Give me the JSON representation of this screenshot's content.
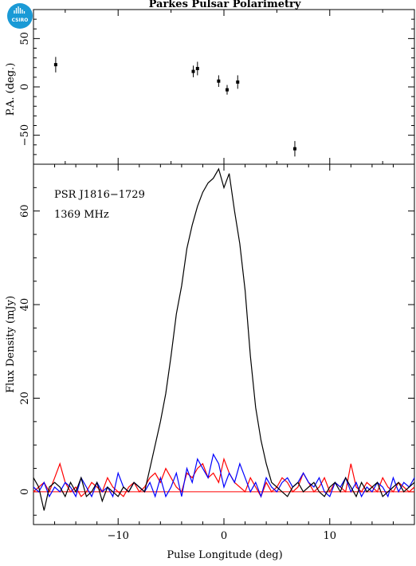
{
  "logo": {
    "text": "CSIRO",
    "color": "#1a9ad6"
  },
  "chart_data": [
    {
      "type": "scatter",
      "title": "Parkes Pulsar Polarimetry",
      "ylabel": "P.A. (deg.)",
      "xlim": [
        -18,
        18
      ],
      "ylim": [
        -80,
        80
      ],
      "y_ticks": [
        -50,
        0,
        50
      ],
      "y_tick_labels": [
        "−50",
        "0",
        "50"
      ],
      "grid": false,
      "points": [
        {
          "x": -15.9,
          "y": 23,
          "err": 8
        },
        {
          "x": -2.9,
          "y": 16,
          "err": 6
        },
        {
          "x": -2.5,
          "y": 19,
          "err": 7
        },
        {
          "x": -0.5,
          "y": 6,
          "err": 6
        },
        {
          "x": 0.3,
          "y": -3,
          "err": 5
        },
        {
          "x": 1.3,
          "y": 5,
          "err": 7
        },
        {
          "x": 6.7,
          "y": -64,
          "err": 8
        }
      ]
    },
    {
      "type": "line",
      "annotations": [
        "PSR J1816−1729",
        "1369 MHz"
      ],
      "xlabel": "Pulse Longitude (deg)",
      "ylabel": "Flux Density (mJy)",
      "xlim": [
        -18,
        18
      ],
      "ylim": [
        -7,
        70
      ],
      "x_ticks": [
        -10,
        0,
        10
      ],
      "x_tick_labels": [
        "−10",
        "0",
        "10"
      ],
      "y_ticks": [
        0,
        20,
        40,
        60
      ],
      "y_tick_labels": [
        "0",
        "20",
        "40",
        "60"
      ],
      "grid": false,
      "x": [
        -18.0,
        -17.5,
        -17.0,
        -16.5,
        -16.0,
        -15.5,
        -15.0,
        -14.5,
        -14.0,
        -13.5,
        -13.0,
        -12.5,
        -12.0,
        -11.5,
        -11.0,
        -10.5,
        -10.0,
        -9.5,
        -9.0,
        -8.5,
        -8.0,
        -7.5,
        -7.0,
        -6.5,
        -6.0,
        -5.5,
        -5.0,
        -4.5,
        -4.0,
        -3.5,
        -3.0,
        -2.5,
        -2.0,
        -1.5,
        -1.0,
        -0.5,
        0.0,
        0.5,
        1.0,
        1.5,
        2.0,
        2.5,
        3.0,
        3.5,
        4.0,
        4.5,
        5.0,
        5.5,
        6.0,
        6.5,
        7.0,
        7.5,
        8.0,
        8.5,
        9.0,
        9.5,
        10.0,
        10.5,
        11.0,
        11.5,
        12.0,
        12.5,
        13.0,
        13.5,
        14.0,
        14.5,
        15.0,
        15.5,
        16.0,
        16.5,
        17.0,
        17.5,
        18.0
      ],
      "series": [
        {
          "color": "#000000",
          "values": [
            3,
            1,
            -4,
            1,
            2,
            1,
            -1,
            2,
            0,
            3,
            -1,
            0,
            2,
            -2,
            1,
            0,
            -1,
            1,
            0,
            2,
            1,
            0,
            5,
            10,
            15,
            21,
            29,
            38,
            44,
            52,
            57,
            61,
            64,
            66,
            67,
            69,
            65,
            68,
            60,
            53,
            43,
            29,
            18,
            11,
            6,
            2,
            1,
            0,
            -1,
            1,
            2,
            0,
            1,
            2,
            0,
            -1,
            1,
            2,
            0,
            3,
            1,
            -1,
            2,
            0,
            1,
            2,
            -1,
            0,
            1,
            2,
            0,
            1,
            2
          ]
        },
        {
          "color": "#ff0000",
          "values": [
            0,
            1,
            2,
            0,
            3,
            6,
            2,
            0,
            1,
            -1,
            0,
            2,
            1,
            0,
            3,
            1,
            0,
            -1,
            1,
            2,
            0,
            1,
            3,
            4,
            2,
            5,
            3,
            1,
            0,
            4,
            3,
            5,
            6,
            3,
            4,
            2,
            7,
            4,
            2,
            1,
            0,
            3,
            1,
            -1,
            2,
            0,
            1,
            3,
            2,
            0,
            1,
            4,
            2,
            0,
            1,
            3,
            0,
            2,
            1,
            0,
            6,
            1,
            0,
            2,
            1,
            0,
            3,
            1,
            0,
            2,
            1,
            0,
            1
          ]
        },
        {
          "color": "#0000ff",
          "values": [
            1,
            0,
            2,
            -1,
            1,
            0,
            2,
            1,
            -1,
            3,
            1,
            -1,
            2,
            0,
            1,
            -1,
            4,
            1,
            0,
            2,
            1,
            0,
            2,
            -1,
            3,
            -1,
            1,
            4,
            -1,
            5,
            2,
            7,
            5,
            3,
            8,
            6,
            1,
            4,
            2,
            6,
            3,
            0,
            2,
            -1,
            3,
            1,
            0,
            2,
            3,
            1,
            2,
            4,
            2,
            1,
            3,
            0,
            -1,
            2,
            1,
            3,
            0,
            2,
            -1,
            1,
            0,
            2,
            1,
            -1,
            3,
            0,
            2,
            1,
            3
          ]
        }
      ]
    }
  ]
}
